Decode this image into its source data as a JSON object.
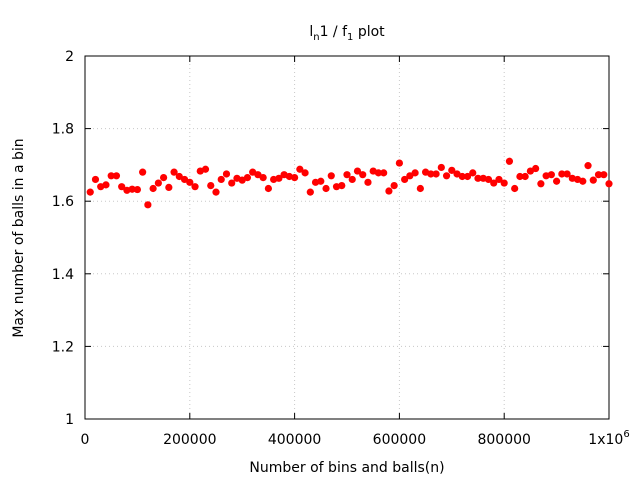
{
  "chart_data": {
    "type": "scatter",
    "title": {
      "base1": "l",
      "sub1": "n",
      "mid": "1 / f",
      "sub2": "1",
      "tail": " plot"
    },
    "xlabel": "Number of bins and balls(n)",
    "ylabel": "Max number of balls in a bin",
    "xlim": [
      0,
      1000000
    ],
    "ylim": [
      1,
      2
    ],
    "grid": true,
    "legend": "none",
    "marker_color": "#ff0000",
    "x_ticks": [
      {
        "value": 0,
        "label": "0"
      },
      {
        "value": 200000,
        "label": "200000"
      },
      {
        "value": 400000,
        "label": "400000"
      },
      {
        "value": 600000,
        "label": "600000"
      },
      {
        "value": 800000,
        "label": "800000"
      },
      {
        "value": 1000000,
        "label": "1x10",
        "sup": "6"
      }
    ],
    "y_ticks": [
      {
        "value": 1,
        "label": "1"
      },
      {
        "value": 1.2,
        "label": "1.2"
      },
      {
        "value": 1.4,
        "label": "1.4"
      },
      {
        "value": 1.6,
        "label": "1.6"
      },
      {
        "value": 1.8,
        "label": "1.8"
      },
      {
        "value": 2,
        "label": "2"
      }
    ],
    "points": [
      [
        10000,
        1.625
      ],
      [
        20000,
        1.66
      ],
      [
        30000,
        1.64
      ],
      [
        40000,
        1.645
      ],
      [
        50000,
        1.67
      ],
      [
        60000,
        1.67
      ],
      [
        70000,
        1.64
      ],
      [
        80000,
        1.63
      ],
      [
        90000,
        1.633
      ],
      [
        100000,
        1.632
      ],
      [
        110000,
        1.68
      ],
      [
        120000,
        1.59
      ],
      [
        130000,
        1.635
      ],
      [
        140000,
        1.65
      ],
      [
        150000,
        1.665
      ],
      [
        160000,
        1.638
      ],
      [
        170000,
        1.68
      ],
      [
        180000,
        1.668
      ],
      [
        190000,
        1.66
      ],
      [
        200000,
        1.652
      ],
      [
        210000,
        1.64
      ],
      [
        220000,
        1.683
      ],
      [
        230000,
        1.688
      ],
      [
        240000,
        1.643
      ],
      [
        250000,
        1.625
      ],
      [
        260000,
        1.66
      ],
      [
        270000,
        1.675
      ],
      [
        280000,
        1.65
      ],
      [
        290000,
        1.663
      ],
      [
        300000,
        1.658
      ],
      [
        310000,
        1.665
      ],
      [
        320000,
        1.68
      ],
      [
        330000,
        1.673
      ],
      [
        340000,
        1.665
      ],
      [
        350000,
        1.635
      ],
      [
        360000,
        1.66
      ],
      [
        370000,
        1.663
      ],
      [
        380000,
        1.673
      ],
      [
        390000,
        1.668
      ],
      [
        400000,
        1.665
      ],
      [
        410000,
        1.688
      ],
      [
        420000,
        1.678
      ],
      [
        430000,
        1.625
      ],
      [
        440000,
        1.652
      ],
      [
        450000,
        1.655
      ],
      [
        460000,
        1.635
      ],
      [
        470000,
        1.67
      ],
      [
        480000,
        1.64
      ],
      [
        490000,
        1.643
      ],
      [
        500000,
        1.673
      ],
      [
        510000,
        1.66
      ],
      [
        520000,
        1.683
      ],
      [
        530000,
        1.673
      ],
      [
        540000,
        1.652
      ],
      [
        550000,
        1.683
      ],
      [
        560000,
        1.678
      ],
      [
        570000,
        1.678
      ],
      [
        580000,
        1.628
      ],
      [
        590000,
        1.643
      ],
      [
        600000,
        1.705
      ],
      [
        610000,
        1.66
      ],
      [
        620000,
        1.67
      ],
      [
        630000,
        1.678
      ],
      [
        640000,
        1.635
      ],
      [
        650000,
        1.68
      ],
      [
        660000,
        1.675
      ],
      [
        670000,
        1.675
      ],
      [
        680000,
        1.693
      ],
      [
        690000,
        1.67
      ],
      [
        700000,
        1.685
      ],
      [
        710000,
        1.675
      ],
      [
        720000,
        1.668
      ],
      [
        730000,
        1.668
      ],
      [
        740000,
        1.678
      ],
      [
        750000,
        1.663
      ],
      [
        760000,
        1.663
      ],
      [
        770000,
        1.66
      ],
      [
        780000,
        1.65
      ],
      [
        790000,
        1.66
      ],
      [
        800000,
        1.65
      ],
      [
        810000,
        1.71
      ],
      [
        820000,
        1.635
      ],
      [
        830000,
        1.668
      ],
      [
        840000,
        1.668
      ],
      [
        850000,
        1.683
      ],
      [
        860000,
        1.69
      ],
      [
        870000,
        1.648
      ],
      [
        880000,
        1.67
      ],
      [
        890000,
        1.673
      ],
      [
        900000,
        1.655
      ],
      [
        910000,
        1.675
      ],
      [
        920000,
        1.675
      ],
      [
        930000,
        1.663
      ],
      [
        940000,
        1.66
      ],
      [
        950000,
        1.655
      ],
      [
        960000,
        1.698
      ],
      [
        970000,
        1.658
      ],
      [
        980000,
        1.673
      ],
      [
        990000,
        1.673
      ],
      [
        1000000,
        1.648
      ]
    ]
  }
}
